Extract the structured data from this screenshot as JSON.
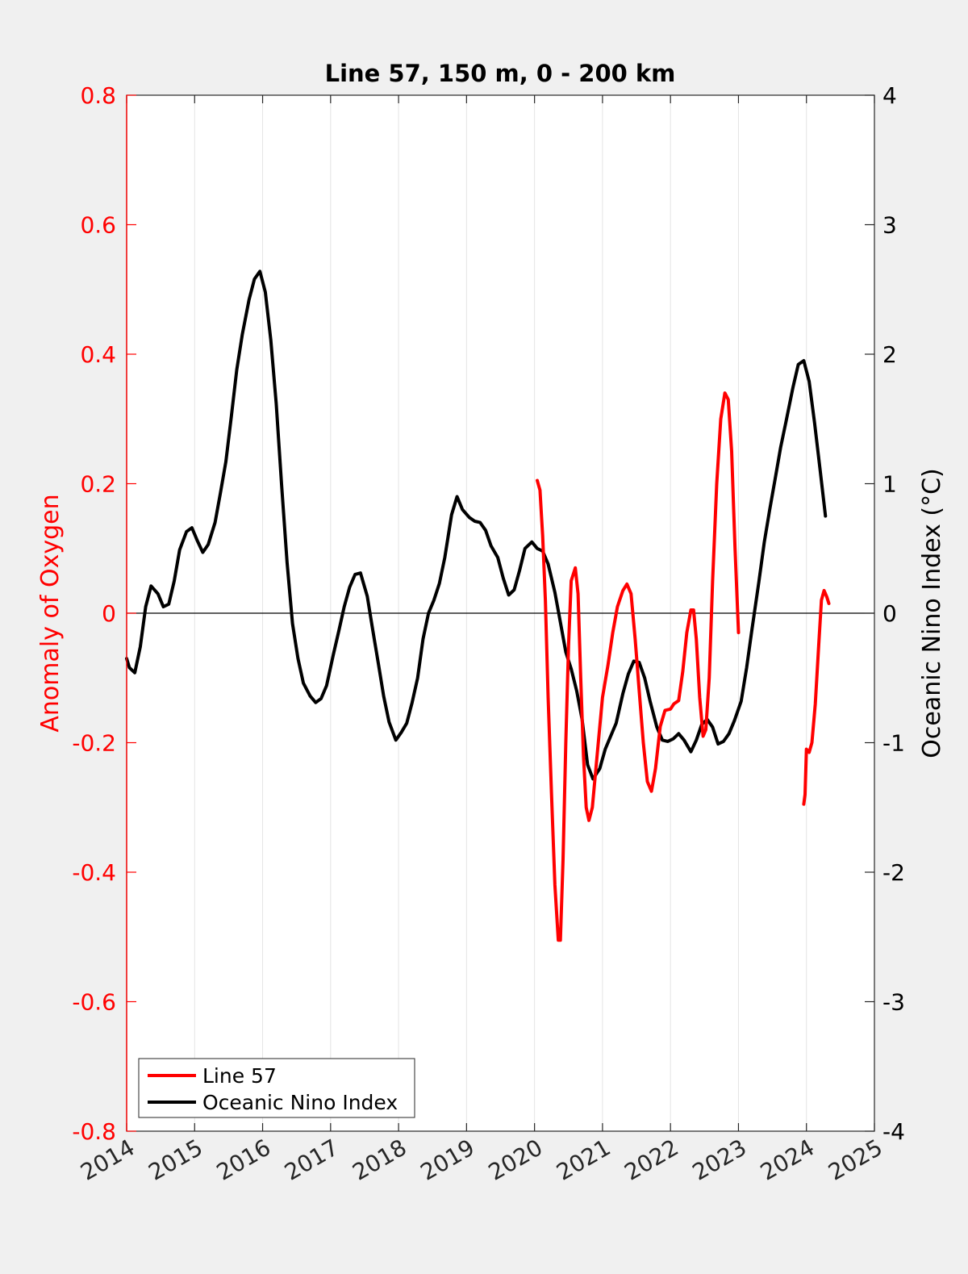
{
  "chart_data": {
    "type": "line",
    "title": "Line 57, 150 m, 0 - 200 km",
    "xlabel": "",
    "ylabel_left": "Anomaly of Oxygen",
    "ylabel_right": "Oceanic Nino Index (°C)",
    "xlim": [
      2014,
      2025
    ],
    "ylim_left": [
      -0.8,
      0.8
    ],
    "ylim_right": [
      -4,
      4
    ],
    "x_ticks": [
      2014,
      2015,
      2016,
      2017,
      2018,
      2019,
      2020,
      2021,
      2022,
      2023,
      2024,
      2025
    ],
    "y_left_ticks": [
      "-0.8",
      "-0.6",
      "-0.4",
      "-0.2",
      "0",
      "0.2",
      "0.4",
      "0.6",
      "0.8"
    ],
    "y_right_ticks": [
      "-4",
      "-3",
      "-2",
      "-1",
      "0",
      "1",
      "2",
      "3",
      "4"
    ],
    "x_grid": true,
    "zero_line": true,
    "legend_position": "bottom-left",
    "colors": {
      "line57": "#ff0000",
      "oni": "#000000",
      "left_axis": "#ff0000",
      "right_axis": "#000000"
    },
    "series": [
      {
        "name": "Line 57",
        "axis": "left",
        "color": "#ff0000",
        "segments": [
          [
            [
              2020.04,
              0.205
            ],
            [
              2020.08,
              0.19
            ],
            [
              2020.12,
              0.12
            ],
            [
              2020.16,
              0.02
            ],
            [
              2020.2,
              -0.13
            ],
            [
              2020.25,
              -0.28
            ],
            [
              2020.3,
              -0.42
            ],
            [
              2020.35,
              -0.505
            ],
            [
              2020.38,
              -0.505
            ],
            [
              2020.42,
              -0.38
            ],
            [
              2020.46,
              -0.2
            ],
            [
              2020.5,
              -0.05
            ],
            [
              2020.54,
              0.05
            ],
            [
              2020.6,
              0.07
            ],
            [
              2020.64,
              0.03
            ],
            [
              2020.68,
              -0.1
            ],
            [
              2020.72,
              -0.22
            ],
            [
              2020.76,
              -0.3
            ],
            [
              2020.8,
              -0.32
            ],
            [
              2020.85,
              -0.3
            ],
            [
              2020.92,
              -0.22
            ],
            [
              2021.0,
              -0.13
            ],
            [
              2021.08,
              -0.08
            ],
            [
              2021.15,
              -0.03
            ],
            [
              2021.22,
              0.01
            ],
            [
              2021.3,
              0.035
            ],
            [
              2021.36,
              0.045
            ],
            [
              2021.42,
              0.03
            ],
            [
              2021.48,
              -0.04
            ],
            [
              2021.54,
              -0.12
            ],
            [
              2021.6,
              -0.2
            ],
            [
              2021.66,
              -0.26
            ],
            [
              2021.72,
              -0.275
            ],
            [
              2021.78,
              -0.24
            ],
            [
              2021.85,
              -0.175
            ],
            [
              2021.92,
              -0.15
            ],
            [
              2022.0,
              -0.148
            ],
            [
              2022.05,
              -0.14
            ],
            [
              2022.12,
              -0.135
            ],
            [
              2022.18,
              -0.09
            ],
            [
              2022.24,
              -0.03
            ],
            [
              2022.3,
              0.005
            ],
            [
              2022.34,
              0.005
            ],
            [
              2022.38,
              -0.04
            ],
            [
              2022.43,
              -0.13
            ],
            [
              2022.48,
              -0.19
            ],
            [
              2022.52,
              -0.18
            ],
            [
              2022.57,
              -0.1
            ],
            [
              2022.62,
              0.05
            ],
            [
              2022.68,
              0.2
            ],
            [
              2022.74,
              0.3
            ],
            [
              2022.8,
              0.34
            ],
            [
              2022.85,
              0.33
            ],
            [
              2022.9,
              0.25
            ],
            [
              2022.95,
              0.1
            ],
            [
              2023.0,
              -0.03
            ]
          ],
          [
            [
              2023.96,
              -0.295
            ],
            [
              2023.98,
              -0.28
            ],
            [
              2024.0,
              -0.21
            ],
            [
              2024.04,
              -0.215
            ],
            [
              2024.08,
              -0.2
            ],
            [
              2024.13,
              -0.14
            ],
            [
              2024.18,
              -0.05
            ],
            [
              2024.22,
              0.02
            ],
            [
              2024.26,
              0.035
            ],
            [
              2024.3,
              0.025
            ],
            [
              2024.33,
              0.015
            ]
          ]
        ]
      },
      {
        "name": "Oceanic Nino Index",
        "axis": "right",
        "color": "#000000",
        "x": [
          2014.0,
          2014.04,
          2014.12,
          2014.2,
          2014.28,
          2014.36,
          2014.46,
          2014.54,
          2014.62,
          2014.7,
          2014.78,
          2014.88,
          2014.96,
          2015.04,
          2015.12,
          2015.2,
          2015.3,
          2015.38,
          2015.46,
          2015.54,
          2015.62,
          2015.7,
          2015.8,
          2015.88,
          2015.96,
          2016.04,
          2016.12,
          2016.2,
          2016.28,
          2016.36,
          2016.44,
          2016.52,
          2016.6,
          2016.7,
          2016.78,
          2016.86,
          2016.94,
          2017.04,
          2017.12,
          2017.2,
          2017.28,
          2017.36,
          2017.44,
          2017.54,
          2017.62,
          2017.7,
          2017.78,
          2017.86,
          2017.96,
          2018.04,
          2018.12,
          2018.2,
          2018.28,
          2018.36,
          2018.44,
          2018.52,
          2018.6,
          2018.68,
          2018.78,
          2018.86,
          2018.94,
          2019.04,
          2019.12,
          2019.2,
          2019.28,
          2019.36,
          2019.46,
          2019.54,
          2019.62,
          2019.7,
          2019.78,
          2019.86,
          2019.96,
          2020.04,
          2020.12,
          2020.2,
          2020.3,
          2020.38,
          2020.46,
          2020.54,
          2020.62,
          2020.7,
          2020.78,
          2020.86,
          2020.96,
          2021.04,
          2021.12,
          2021.2,
          2021.3,
          2021.38,
          2021.46,
          2021.54,
          2021.62,
          2021.7,
          2021.8,
          2021.88,
          2021.96,
          2022.04,
          2022.12,
          2022.2,
          2022.3,
          2022.38,
          2022.46,
          2022.54,
          2022.62,
          2022.7,
          2022.78,
          2022.86,
          2022.94,
          2023.04,
          2023.12,
          2023.2,
          2023.3,
          2023.38,
          2023.46,
          2023.54,
          2023.62,
          2023.7,
          2023.8,
          2023.88,
          2023.96,
          2024.04,
          2024.12,
          2024.2,
          2024.28
        ],
        "y": [
          -0.35,
          -0.42,
          -0.46,
          -0.26,
          0.05,
          0.21,
          0.15,
          0.05,
          0.07,
          0.25,
          0.49,
          0.63,
          0.66,
          0.56,
          0.47,
          0.53,
          0.7,
          0.93,
          1.17,
          1.52,
          1.88,
          2.15,
          2.42,
          2.58,
          2.64,
          2.48,
          2.11,
          1.62,
          0.99,
          0.39,
          -0.08,
          -0.35,
          -0.54,
          -0.64,
          -0.69,
          -0.66,
          -0.56,
          -0.32,
          -0.14,
          0.05,
          0.2,
          0.3,
          0.31,
          0.13,
          -0.13,
          -0.38,
          -0.64,
          -0.84,
          -0.98,
          -0.92,
          -0.85,
          -0.69,
          -0.5,
          -0.2,
          0.0,
          0.1,
          0.23,
          0.43,
          0.76,
          0.9,
          0.8,
          0.74,
          0.71,
          0.7,
          0.64,
          0.52,
          0.43,
          0.27,
          0.14,
          0.18,
          0.33,
          0.5,
          0.55,
          0.5,
          0.48,
          0.38,
          0.16,
          -0.07,
          -0.3,
          -0.43,
          -0.6,
          -0.82,
          -1.17,
          -1.28,
          -1.2,
          -1.05,
          -0.95,
          -0.85,
          -0.62,
          -0.47,
          -0.37,
          -0.38,
          -0.5,
          -0.68,
          -0.88,
          -0.98,
          -0.99,
          -0.97,
          -0.93,
          -0.98,
          -1.07,
          -0.98,
          -0.86,
          -0.82,
          -0.88,
          -1.01,
          -0.99,
          -0.93,
          -0.83,
          -0.68,
          -0.42,
          -0.12,
          0.24,
          0.55,
          0.8,
          1.04,
          1.28,
          1.48,
          1.74,
          1.92,
          1.95,
          1.79,
          1.47,
          1.11,
          0.75
        ]
      }
    ]
  }
}
